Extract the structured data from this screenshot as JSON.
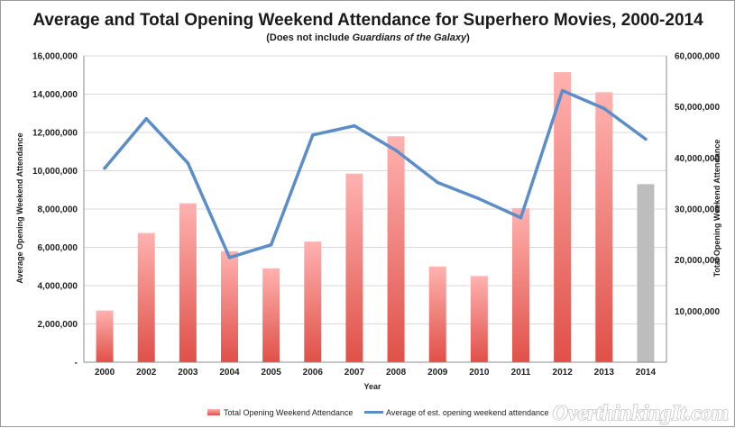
{
  "chart_data": {
    "type": "bar",
    "title": "Average and Total Opening Weekend Attendance for Superhero Movies, 2000-2014",
    "subtitle_prefix": "(Does not include ",
    "subtitle_italic": "Guardians of the Galaxy",
    "subtitle_suffix": ")",
    "xlabel": "Year",
    "ylabel_left": "Average Opening Weekend Attendance",
    "ylabel_right": "Total Opening Weekend Attendance",
    "categories": [
      "2000",
      "2002",
      "2003",
      "2004",
      "2005",
      "2006",
      "2007",
      "2008",
      "2009",
      "2010",
      "2011",
      "2012",
      "2013",
      "2014"
    ],
    "y_left": {
      "min": 0,
      "max": 16000000,
      "ticks": [
        "-",
        "2,000,000",
        "4,000,000",
        "6,000,000",
        "8,000,000",
        "10,000,000",
        "12,000,000",
        "14,000,000",
        "16,000,000"
      ]
    },
    "y_right": {
      "min": 0,
      "max": 60000000,
      "ticks": [
        "10,000,000",
        "20,000,000",
        "30,000,000",
        "40,000,000",
        "50,000,000",
        "60,000,000"
      ]
    },
    "grid": true,
    "legend_position": "bottom",
    "series": [
      {
        "name": "Total Opening Weekend Attendance",
        "kind": "bar",
        "axis": "left",
        "values": [
          2700000,
          6750000,
          8300000,
          5800000,
          4900000,
          6300000,
          9850000,
          11800000,
          5000000,
          4500000,
          8050000,
          15150000,
          14100000,
          9300000
        ],
        "color_top": "#ffb2b0",
        "color_bottom": "#e05048",
        "highlight_color": "#bdbdbd",
        "highlight_category": "2014"
      },
      {
        "name": "Average of est. opening weekend attendance",
        "kind": "line",
        "axis": "right",
        "values": [
          38000000,
          47700000,
          39000000,
          20500000,
          23000000,
          44500000,
          46300000,
          41500000,
          35200000,
          32000000,
          28300000,
          53200000,
          49700000,
          43700000
        ],
        "color": "#5b8dc8"
      }
    ]
  },
  "watermark": "OverthinkingIt.com"
}
